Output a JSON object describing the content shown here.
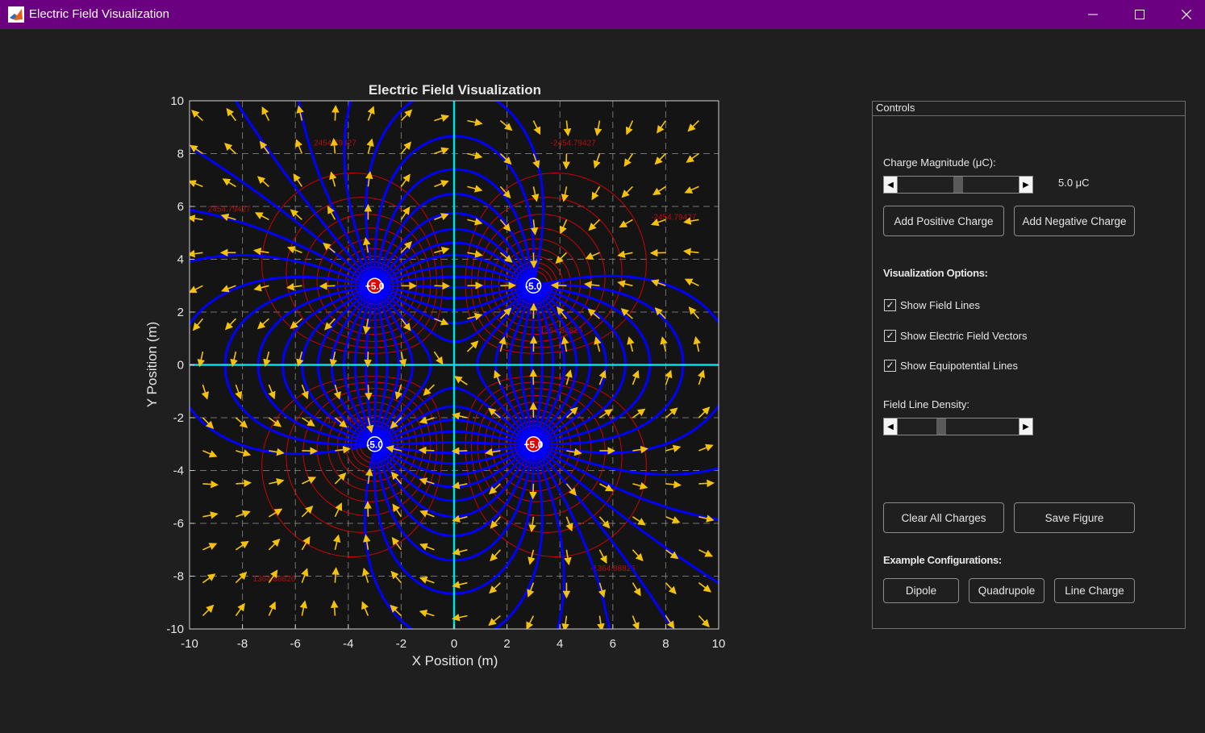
{
  "window": {
    "title": "Electric Field Visualization",
    "icon": "matlab-logo-icon",
    "buttons": [
      "minimize-icon",
      "maximize-icon",
      "close-icon"
    ]
  },
  "plot": {
    "title": "Electric Field Visualization",
    "xlabel": "X Position (m)",
    "ylabel": "Y Position (m)",
    "xlim": [
      -10,
      10
    ],
    "ylim": [
      -10,
      10
    ],
    "xticks": [
      "-10",
      "-8",
      "-6",
      "-4",
      "-2",
      "0",
      "2",
      "4",
      "6",
      "8",
      "10"
    ],
    "yticks": [
      "10",
      "8",
      "6",
      "4",
      "2",
      "0",
      "-2",
      "-4",
      "-6",
      "-8",
      "-10"
    ],
    "grid": "dashed",
    "colors": {
      "background": "#141414",
      "field_lines": "#0000ff",
      "vectors": "#f4c20d",
      "equipotential": "#e00000",
      "axes_lines": "#00e0e0",
      "positive_charge": "#e00000",
      "negative_charge": "#0000ff"
    },
    "charges": [
      {
        "x": -3,
        "y": 3,
        "q": 5.0,
        "label": "+5.0"
      },
      {
        "x": 3,
        "y": 3,
        "q": -5.0,
        "label": "-5.0"
      },
      {
        "x": -3,
        "y": -3,
        "q": -5.0,
        "label": "-5.0"
      },
      {
        "x": 3,
        "y": -3,
        "q": 5.0,
        "label": "+5.0"
      }
    ],
    "equipotential_labels": [
      "2454.79427",
      "-2454.79427",
      "1364.88826",
      "-1364.88826"
    ]
  },
  "controls": {
    "panel_title": "Controls",
    "charge_magnitude_label": "Charge Magnitude (μC):",
    "charge_magnitude_value": "5.0 μC",
    "charge_slider_level": 0.5,
    "add_positive_label": "Add Positive Charge",
    "add_negative_label": "Add Negative Charge",
    "vis_options_label": "Visualization Options:",
    "show_field_lines_label": "Show Field Lines",
    "show_vectors_label": "Show Electric Field Vectors",
    "show_equipotential_label": "Show Equipotential Lines",
    "checked_mark": "✓",
    "density_label": "Field Line Density:",
    "density_slider_level": 0.35,
    "clear_label": "Clear All Charges",
    "save_label": "Save Figure",
    "examples_label": "Example Configurations:",
    "dipole_label": "Dipole",
    "quadrupole_label": "Quadrupole",
    "line_charge_label": "Line Charge"
  }
}
